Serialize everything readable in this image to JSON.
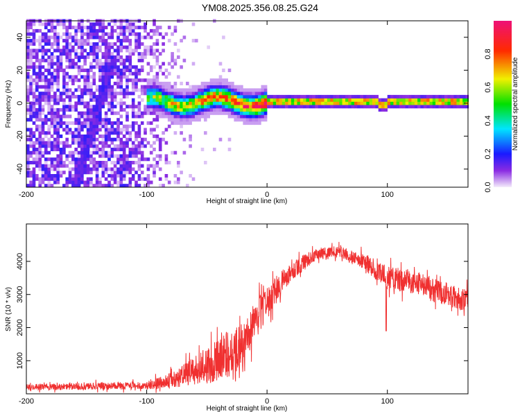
{
  "title": "YM08.2025.356.08.25.G24",
  "chart_data": [
    {
      "type": "heatmap",
      "xlabel": "Height of straight line (km)",
      "ylabel": "Frequency (Hz)",
      "xlim": [
        -200,
        167
      ],
      "ylim": [
        -51,
        50
      ],
      "xticks": [
        "-200",
        "-100",
        "0",
        "100"
      ],
      "xtick_values": [
        -200,
        -100,
        0,
        100
      ],
      "yticks": [
        "40",
        "20",
        "0",
        "-20",
        "-40"
      ],
      "ytick_values": [
        40,
        20,
        0,
        -20,
        -40
      ],
      "colorbar": {
        "label": "Normalized spectral amplitude",
        "range": [
          0,
          1
        ],
        "ticks": [
          "0.0",
          "0.2",
          "0.4",
          "0.6",
          "0.8"
        ],
        "tick_values": [
          0,
          0.2,
          0.4,
          0.6,
          0.8
        ],
        "stops": [
          "#f4ecfb",
          "#8a2be2",
          "#1a1aff",
          "#00e5ff",
          "#00e000",
          "#f0f000",
          "#ff2a00",
          "#ee1177"
        ]
      },
      "features": {
        "noise_region_km": [
          -200,
          -60
        ],
        "ridge_start_km": -100,
        "ridge_center_hz": 0,
        "slanted_ridge": {
          "from": [
            -152,
            -30
          ],
          "to": [
            -135,
            12
          ]
        }
      }
    },
    {
      "type": "line",
      "xlabel": "Height of straight line (km)",
      "ylabel": "SNR (10 * v/v)",
      "xlim": [
        -200,
        167
      ],
      "ylim": [
        0,
        5130
      ],
      "xticks": [
        "-200",
        "-100",
        "0",
        "100"
      ],
      "xtick_values": [
        -200,
        -100,
        0,
        100
      ],
      "yticks": [
        "1000",
        "2000",
        "3000",
        "4000"
      ],
      "ytick_values": [
        1000,
        2000,
        3000,
        4000
      ],
      "color": "#f03030",
      "envelope": {
        "x": [
          -200,
          -100,
          -80,
          -60,
          -40,
          -20,
          0,
          20,
          40,
          60,
          80,
          100,
          120,
          140,
          167
        ],
        "mean": [
          200,
          250,
          400,
          700,
          1000,
          1500,
          2800,
          3700,
          4200,
          4300,
          4000,
          3500,
          3400,
          3100,
          2800
        ],
        "spread": [
          150,
          200,
          400,
          700,
          1200,
          1200,
          800,
          500,
          300,
          300,
          400,
          600,
          600,
          600,
          600
        ]
      }
    }
  ]
}
